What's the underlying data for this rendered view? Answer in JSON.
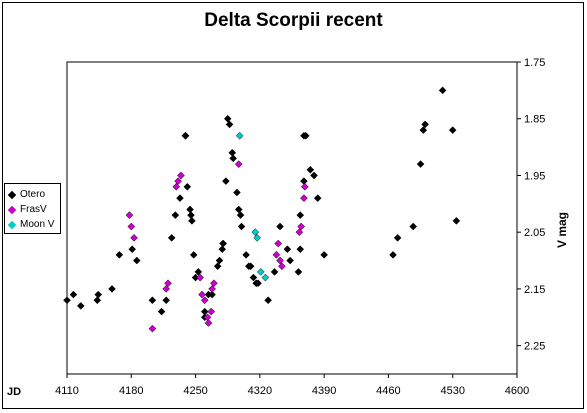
{
  "chart_data": {
    "type": "scatter",
    "title": "Delta Scorpii recent",
    "xlabel": "JD",
    "ylabel": "V mag",
    "xlim": [
      4110,
      4600
    ],
    "ylim": [
      1.75,
      2.3
    ],
    "y_inverted": true,
    "x_ticks": [
      "4110",
      "4180",
      "4250",
      "4320",
      "4390",
      "4460",
      "4530",
      "4600"
    ],
    "y_ticks": [
      "1.75",
      "1.85",
      "1.95",
      "2.05",
      "2.15",
      "2.25"
    ],
    "grid": false,
    "legend_position": "left",
    "series": [
      {
        "name": "Otero",
        "color": "#000000",
        "points": [
          [
            4110,
            2.17
          ],
          [
            4117,
            2.16
          ],
          [
            4125,
            2.18
          ],
          [
            4143,
            2.17
          ],
          [
            4144,
            2.16
          ],
          [
            4159,
            2.15
          ],
          [
            4167,
            2.09
          ],
          [
            4181,
            2.08
          ],
          [
            4186,
            2.1
          ],
          [
            4203,
            2.17
          ],
          [
            4213,
            2.19
          ],
          [
            4218,
            2.17
          ],
          [
            4224,
            2.06
          ],
          [
            4228,
            2.02
          ],
          [
            4233,
            1.99
          ],
          [
            4239,
            1.88
          ],
          [
            4239,
            1.88
          ],
          [
            4241,
            1.97
          ],
          [
            4244,
            2.01
          ],
          [
            4245,
            2.02
          ],
          [
            4246,
            2.03
          ],
          [
            4248,
            2.09
          ],
          [
            4250,
            2.13
          ],
          [
            4253,
            2.12
          ],
          [
            4260,
            2.2
          ],
          [
            4260,
            2.19
          ],
          [
            4264,
            2.16
          ],
          [
            4268,
            2.16
          ],
          [
            4274,
            2.11
          ],
          [
            4276,
            2.1
          ],
          [
            4279,
            2.08
          ],
          [
            4280,
            2.07
          ],
          [
            4280,
            2.07
          ],
          [
            4283,
            1.96
          ],
          [
            4285,
            1.85
          ],
          [
            4287,
            1.86
          ],
          [
            4290,
            1.91
          ],
          [
            4291,
            1.92
          ],
          [
            4295,
            1.98
          ],
          [
            4297,
            2.01
          ],
          [
            4299,
            2.02
          ],
          [
            4300,
            2.04
          ],
          [
            4305,
            2.09
          ],
          [
            4308,
            2.11
          ],
          [
            4310,
            2.11
          ],
          [
            4313,
            2.13
          ],
          [
            4316,
            2.14
          ],
          [
            4318,
            2.14
          ],
          [
            4329,
            2.17
          ],
          [
            4336,
            2.12
          ],
          [
            4342,
            2.04
          ],
          [
            4350,
            2.08
          ],
          [
            4353,
            2.1
          ],
          [
            4362,
            2.12
          ],
          [
            4364,
            2.08
          ],
          [
            4364,
            2.02
          ],
          [
            4368,
            1.96
          ],
          [
            4368,
            1.88
          ],
          [
            4370,
            1.88
          ],
          [
            4375,
            1.94
          ],
          [
            4379,
            1.95
          ],
          [
            4383,
            1.99
          ],
          [
            4390,
            2.09
          ],
          [
            4465,
            2.09
          ],
          [
            4470,
            2.06
          ],
          [
            4487,
            2.04
          ],
          [
            4495,
            1.93
          ],
          [
            4498,
            1.87
          ],
          [
            4500,
            1.86
          ],
          [
            4519,
            1.8
          ],
          [
            4530,
            1.87
          ],
          [
            4534,
            2.03
          ]
        ]
      },
      {
        "name": "FrasV",
        "color": "#cc00cc",
        "points": [
          [
            4178,
            2.02
          ],
          [
            4180,
            2.04
          ],
          [
            4183,
            2.06
          ],
          [
            4203,
            2.22
          ],
          [
            4218,
            2.15
          ],
          [
            4220,
            2.14
          ],
          [
            4229,
            1.97
          ],
          [
            4231,
            1.96
          ],
          [
            4234,
            1.95
          ],
          [
            4255,
            2.13
          ],
          [
            4257,
            2.16
          ],
          [
            4260,
            2.17
          ],
          [
            4263,
            2.2
          ],
          [
            4264,
            2.21
          ],
          [
            4267,
            2.19
          ],
          [
            4268,
            2.15
          ],
          [
            4270,
            2.14
          ],
          [
            4297,
            1.93
          ],
          [
            4338,
            2.09
          ],
          [
            4340,
            2.07
          ],
          [
            4342,
            2.1
          ],
          [
            4344,
            2.11
          ],
          [
            4363,
            2.05
          ],
          [
            4365,
            2.04
          ],
          [
            4368,
            1.99
          ],
          [
            4369,
            1.97
          ]
        ]
      },
      {
        "name": "Moon V",
        "color": "#00cccc",
        "points": [
          [
            4298,
            1.88
          ],
          [
            4315,
            2.05
          ],
          [
            4317,
            2.06
          ],
          [
            4321,
            2.12
          ],
          [
            4326,
            2.13
          ]
        ]
      }
    ]
  }
}
